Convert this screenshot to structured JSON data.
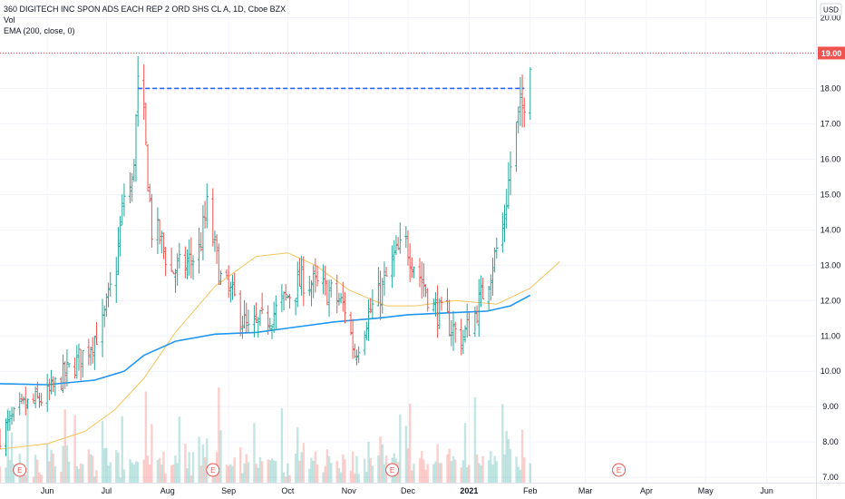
{
  "legend": {
    "title": "360 DIGITECH INC SPON ADS EACH REP 2 ORD SHS CL A, 1D, Cboe BZX",
    "vol": "Vol",
    "ema": "EMA (200, close, 0)"
  },
  "currency": "USD",
  "colors": {
    "up": "#26a69a",
    "down": "#ef5350",
    "ema200": "#2196f3",
    "ema_slow": "#f7c35c",
    "price_line": "#ef5350",
    "resistance": "#2962ff",
    "grid": "#f0f3fa",
    "axis_text": "#131722",
    "event": "#ef5350"
  },
  "chart_data": {
    "type": "ohlc",
    "y_ticks": [
      "20.00",
      "19.00",
      "18.00",
      "17.00",
      "16.00",
      "15.00",
      "14.00",
      "13.00",
      "12.00",
      "11.00",
      "10.00",
      "9.00",
      "8.00",
      "7.00"
    ],
    "ylim": [
      6.85,
      20.5
    ],
    "x_ticks": [
      {
        "label": "Jun",
        "date": "2020-06-01",
        "bold": false
      },
      {
        "label": "Jul",
        "date": "2020-07-01",
        "bold": false
      },
      {
        "label": "Aug",
        "date": "2020-08-01",
        "bold": false
      },
      {
        "label": "Sep",
        "date": "2020-09-01",
        "bold": false
      },
      {
        "label": "Oct",
        "date": "2020-10-01",
        "bold": false
      },
      {
        "label": "Nov",
        "date": "2020-11-01",
        "bold": false
      },
      {
        "label": "Dec",
        "date": "2020-12-01",
        "bold": false
      },
      {
        "label": "2021",
        "date": "2021-01-01",
        "bold": true
      },
      {
        "label": "Feb",
        "date": "2021-02-01",
        "bold": false
      },
      {
        "label": "Mar",
        "date": "2021-03-01",
        "bold": false
      },
      {
        "label": "Apr",
        "date": "2021-04-01",
        "bold": false
      },
      {
        "label": "May",
        "date": "2021-05-01",
        "bold": false
      },
      {
        "label": "Jun",
        "date": "2021-06-01",
        "bold": false
      }
    ],
    "xlim": [
      "2020-05-08",
      "2021-06-26"
    ],
    "last_price": {
      "value": 19.0,
      "label": "19.00"
    },
    "resistance_line": {
      "value": 18.0,
      "start": "2020-07-17",
      "end": "2021-01-29"
    },
    "earnings_markers": {
      "label": "E",
      "dates": [
        "2020-05-18",
        "2020-08-24",
        "2020-11-23",
        "2021-03-18"
      ]
    },
    "ohlc_points": [
      {
        "date": "2020-05-08",
        "close": 8.2
      },
      {
        "date": "2020-05-20",
        "close": 9.0
      },
      {
        "date": "2020-06-01",
        "close": 9.3
      },
      {
        "date": "2020-06-08",
        "close": 9.8
      },
      {
        "date": "2020-06-15",
        "close": 10.2
      },
      {
        "date": "2020-06-22",
        "close": 10.7
      },
      {
        "date": "2020-06-29",
        "close": 11.3
      },
      {
        "date": "2020-07-06",
        "close": 13.0
      },
      {
        "date": "2020-07-10",
        "close": 15.0
      },
      {
        "date": "2020-07-14",
        "close": 15.2
      },
      {
        "date": "2020-07-17",
        "close": 18.0
      },
      {
        "date": "2020-07-20",
        "close": 17.0
      },
      {
        "date": "2020-07-24",
        "close": 14.0
      },
      {
        "date": "2020-07-28",
        "close": 13.8
      },
      {
        "date": "2020-08-03",
        "close": 12.8
      },
      {
        "date": "2020-08-10",
        "close": 13.0
      },
      {
        "date": "2020-08-17",
        "close": 13.4
      },
      {
        "date": "2020-08-21",
        "close": 14.6
      },
      {
        "date": "2020-08-28",
        "close": 12.6
      },
      {
        "date": "2020-09-04",
        "close": 12.0
      },
      {
        "date": "2020-09-11",
        "close": 11.1
      },
      {
        "date": "2020-09-18",
        "close": 11.4
      },
      {
        "date": "2020-09-25",
        "close": 11.7
      },
      {
        "date": "2020-10-02",
        "close": 12.2
      },
      {
        "date": "2020-10-09",
        "close": 12.6
      },
      {
        "date": "2020-10-16",
        "close": 12.4
      },
      {
        "date": "2020-10-23",
        "close": 12.2
      },
      {
        "date": "2020-10-30",
        "close": 11.8
      },
      {
        "date": "2020-11-04",
        "close": 10.5
      },
      {
        "date": "2020-11-10",
        "close": 11.5
      },
      {
        "date": "2020-11-17",
        "close": 12.2
      },
      {
        "date": "2020-11-24",
        "close": 13.2
      },
      {
        "date": "2020-11-30",
        "close": 13.6
      },
      {
        "date": "2020-12-07",
        "close": 12.7
      },
      {
        "date": "2020-12-14",
        "close": 11.8
      },
      {
        "date": "2020-12-21",
        "close": 11.4
      },
      {
        "date": "2020-12-28",
        "close": 10.9
      },
      {
        "date": "2021-01-04",
        "close": 11.6
      },
      {
        "date": "2021-01-11",
        "close": 12.7
      },
      {
        "date": "2021-01-18",
        "close": 14.0
      },
      {
        "date": "2021-01-22",
        "close": 15.8
      },
      {
        "date": "2021-01-26",
        "close": 17.2
      },
      {
        "date": "2021-01-28",
        "close": 17.4
      },
      {
        "date": "2021-02-01",
        "close": 19.0
      }
    ],
    "ema200": [
      {
        "date": "2020-05-08",
        "value": 9.65
      },
      {
        "date": "2020-06-01",
        "value": 9.62
      },
      {
        "date": "2020-06-25",
        "value": 9.75
      },
      {
        "date": "2020-07-10",
        "value": 10.0
      },
      {
        "date": "2020-07-20",
        "value": 10.45
      },
      {
        "date": "2020-08-05",
        "value": 10.85
      },
      {
        "date": "2020-08-25",
        "value": 11.05
      },
      {
        "date": "2020-09-15",
        "value": 11.1
      },
      {
        "date": "2020-10-05",
        "value": 11.25
      },
      {
        "date": "2020-10-25",
        "value": 11.4
      },
      {
        "date": "2020-11-15",
        "value": 11.5
      },
      {
        "date": "2020-12-01",
        "value": 11.6
      },
      {
        "date": "2020-12-20",
        "value": 11.65
      },
      {
        "date": "2021-01-10",
        "value": 11.7
      },
      {
        "date": "2021-01-22",
        "value": 11.85
      },
      {
        "date": "2021-02-01",
        "value": 12.15
      }
    ],
    "ema_slow": [
      {
        "date": "2020-05-08",
        "value": 7.8
      },
      {
        "date": "2020-06-01",
        "value": 7.95
      },
      {
        "date": "2020-06-20",
        "value": 8.3
      },
      {
        "date": "2020-07-05",
        "value": 8.9
      },
      {
        "date": "2020-07-20",
        "value": 9.8
      },
      {
        "date": "2020-08-05",
        "value": 11.1
      },
      {
        "date": "2020-08-25",
        "value": 12.4
      },
      {
        "date": "2020-09-15",
        "value": 13.25
      },
      {
        "date": "2020-10-01",
        "value": 13.35
      },
      {
        "date": "2020-10-15",
        "value": 13.0
      },
      {
        "date": "2020-11-01",
        "value": 12.3
      },
      {
        "date": "2020-11-20",
        "value": 11.85
      },
      {
        "date": "2020-12-05",
        "value": 11.85
      },
      {
        "date": "2020-12-25",
        "value": 12.0
      },
      {
        "date": "2021-01-15",
        "value": 11.9
      },
      {
        "date": "2021-02-01",
        "value": 12.35
      },
      {
        "date": "2021-02-10",
        "value": 12.8
      },
      {
        "date": "2021-02-16",
        "value": 13.1
      }
    ]
  }
}
